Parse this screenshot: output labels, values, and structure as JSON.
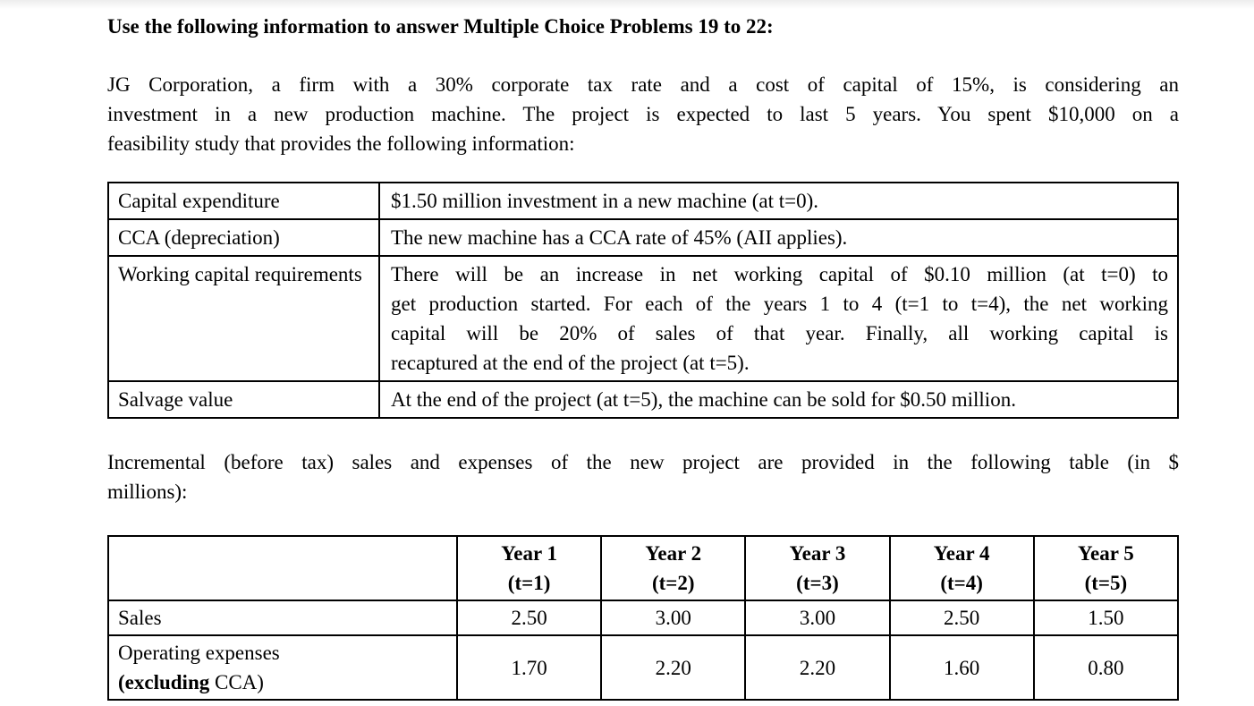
{
  "page": {
    "heading": "Use the following information to answer Multiple Choice Problems 19 to 22:",
    "intro_lines": [
      "JG Corporation, a firm with a 30% corporate tax rate and a cost of capital of 15%, is considering an",
      "investment in a new production machine. The project is expected to last 5 years. You spent $10,000 on a",
      "feasibility study that provides the following information:"
    ],
    "between_tables_lines": [
      "Incremental (before tax) sales and expenses of the new project are provided in the following table (in $",
      "millions):"
    ]
  },
  "project_info_table": {
    "rows": [
      {
        "label": "Capital expenditure",
        "description": "$1.50 million investment in a new machine (at t=0)."
      },
      {
        "label": "CCA (depreciation)",
        "description": "The new machine has a CCA rate of 45% (AII applies)."
      },
      {
        "label": "Working capital requirements",
        "description_lines": [
          "There will be an increase in net working capital of $0.10 million (at t=0) to",
          "get production started. For each of the years 1 to 4 (t=1 to t=4), the net working",
          "capital will be 20% of sales of that year. Finally, all working capital is",
          "recaptured at the end of the project (at t=5)."
        ]
      },
      {
        "label": "Salvage value",
        "description": "At the end of the project (at t=5), the machine can be sold for $0.50 million."
      }
    ]
  },
  "sales_expenses_table": {
    "column_headers": [
      {
        "line1": "Year 1",
        "line2": "(t=1)"
      },
      {
        "line1": "Year 2",
        "line2": "(t=2)"
      },
      {
        "line1": "Year 3",
        "line2": "(t=3)"
      },
      {
        "line1": "Year 4",
        "line2": "(t=4)"
      },
      {
        "line1": "Year 5",
        "line2": "(t=5)"
      }
    ],
    "rows": [
      {
        "label": "Sales",
        "values": [
          "2.50",
          "3.00",
          "3.00",
          "2.50",
          "1.50"
        ]
      },
      {
        "label_line1": "Operating expenses",
        "label_line2_bold": "(excluding",
        "label_line2_rest": " CCA)",
        "values": [
          "1.70",
          "2.20",
          "2.20",
          "1.60",
          "0.80"
        ]
      }
    ]
  }
}
